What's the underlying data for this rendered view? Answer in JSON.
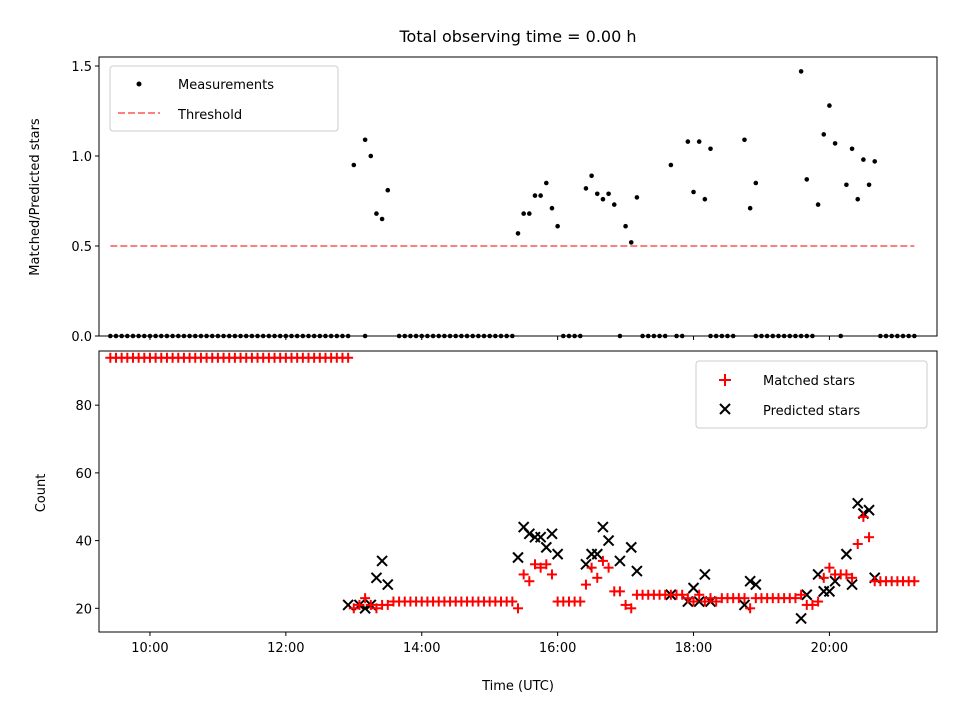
{
  "chart_data": [
    {
      "type": "scatter",
      "title": "Total observing time = 0.00 h",
      "xlabel": "",
      "ylabel": "Matched/Predicted stars",
      "xlim": [
        "09:15",
        "21:35"
      ],
      "ylim": [
        0,
        1.55
      ],
      "yticks": [
        "0.0",
        "0.5",
        "1.0",
        "1.5"
      ],
      "legend_position": "top-left",
      "series": [
        {
          "name": "Measurements",
          "color": "#000000",
          "marker": "dot",
          "zero_times": [
            "09:25",
            "09:30",
            "09:35",
            "09:40",
            "09:45",
            "09:50",
            "09:55",
            "10:00",
            "10:05",
            "10:10",
            "10:15",
            "10:20",
            "10:25",
            "10:30",
            "10:35",
            "10:40",
            "10:45",
            "10:50",
            "10:55",
            "11:00",
            "11:05",
            "11:10",
            "11:15",
            "11:20",
            "11:25",
            "11:30",
            "11:35",
            "11:40",
            "11:45",
            "11:50",
            "11:55",
            "12:00",
            "12:05",
            "12:10",
            "12:15",
            "12:20",
            "12:25",
            "12:30",
            "12:35",
            "12:40",
            "12:45",
            "12:50",
            "12:55",
            "13:10",
            "13:40",
            "13:45",
            "13:50",
            "13:55",
            "14:00",
            "14:05",
            "14:10",
            "14:15",
            "14:20",
            "14:25",
            "14:30",
            "14:35",
            "14:40",
            "14:45",
            "14:50",
            "14:55",
            "15:00",
            "15:05",
            "15:10",
            "15:15",
            "15:20",
            "16:05",
            "16:10",
            "16:15",
            "16:20",
            "16:55",
            "17:15",
            "17:20",
            "17:25",
            "17:30",
            "17:35",
            "17:45",
            "17:50",
            "18:15",
            "18:20",
            "18:25",
            "18:30",
            "18:35",
            "18:55",
            "19:00",
            "19:05",
            "19:10",
            "19:15",
            "19:20",
            "19:25",
            "19:30",
            "19:35",
            "19:40",
            "19:45",
            "20:10",
            "20:45",
            "20:50",
            "20:55",
            "21:00",
            "21:05",
            "21:10",
            "21:15"
          ],
          "points": [
            {
              "x": "13:00",
              "y": 0.95
            },
            {
              "x": "13:10",
              "y": 1.09
            },
            {
              "x": "13:15",
              "y": 1.0
            },
            {
              "x": "13:20",
              "y": 0.68
            },
            {
              "x": "13:25",
              "y": 0.65
            },
            {
              "x": "13:30",
              "y": 0.81
            },
            {
              "x": "15:25",
              "y": 0.57
            },
            {
              "x": "15:30",
              "y": 0.68
            },
            {
              "x": "15:35",
              "y": 0.68
            },
            {
              "x": "15:40",
              "y": 0.78
            },
            {
              "x": "15:45",
              "y": 0.78
            },
            {
              "x": "15:50",
              "y": 0.85
            },
            {
              "x": "15:55",
              "y": 0.71
            },
            {
              "x": "16:00",
              "y": 0.61
            },
            {
              "x": "16:25",
              "y": 0.82
            },
            {
              "x": "16:30",
              "y": 0.89
            },
            {
              "x": "16:35",
              "y": 0.79
            },
            {
              "x": "16:40",
              "y": 0.76
            },
            {
              "x": "16:45",
              "y": 0.79
            },
            {
              "x": "16:50",
              "y": 0.73
            },
            {
              "x": "17:00",
              "y": 0.61
            },
            {
              "x": "17:05",
              "y": 0.52
            },
            {
              "x": "17:10",
              "y": 0.77
            },
            {
              "x": "17:40",
              "y": 0.95
            },
            {
              "x": "17:55",
              "y": 1.08
            },
            {
              "x": "18:00",
              "y": 0.8
            },
            {
              "x": "18:05",
              "y": 1.08
            },
            {
              "x": "18:10",
              "y": 0.76
            },
            {
              "x": "18:15",
              "y": 1.04
            },
            {
              "x": "18:45",
              "y": 1.09
            },
            {
              "x": "18:50",
              "y": 0.71
            },
            {
              "x": "18:55",
              "y": 0.85
            },
            {
              "x": "19:35",
              "y": 1.47
            },
            {
              "x": "19:40",
              "y": 0.87
            },
            {
              "x": "19:50",
              "y": 0.73
            },
            {
              "x": "19:55",
              "y": 1.12
            },
            {
              "x": "20:00",
              "y": 1.28
            },
            {
              "x": "20:05",
              "y": 1.07
            },
            {
              "x": "20:15",
              "y": 0.84
            },
            {
              "x": "20:20",
              "y": 1.04
            },
            {
              "x": "20:25",
              "y": 0.76
            },
            {
              "x": "20:30",
              "y": 0.98
            },
            {
              "x": "20:35",
              "y": 0.84
            },
            {
              "x": "20:40",
              "y": 0.97
            }
          ]
        },
        {
          "name": "Threshold",
          "color": "#ff7f7f",
          "style": "dashed",
          "from": "09:25",
          "to": "21:15",
          "value": 0.5
        }
      ]
    },
    {
      "type": "scatter",
      "title": "",
      "xlabel": "Time (UTC)",
      "ylabel": "Count",
      "xlim": [
        "09:15",
        "21:35"
      ],
      "ylim": [
        13,
        96
      ],
      "yticks": [
        "20",
        "40",
        "60",
        "80"
      ],
      "xticks": [
        "10:00",
        "12:00",
        "14:00",
        "16:00",
        "18:00",
        "20:00"
      ],
      "legend_position": "top-right",
      "series": [
        {
          "name": "Matched stars",
          "color": "#ff0000",
          "marker": "plus",
          "constant_runs": [
            {
              "from": "09:25",
              "to": "12:55",
              "value": 94
            },
            {
              "from": "13:35",
              "to": "15:20",
              "value": 22
            },
            {
              "from": "16:00",
              "to": "16:20",
              "value": 22
            },
            {
              "from": "17:10",
              "to": "17:50",
              "value": 24
            },
            {
              "from": "18:25",
              "to": "18:45",
              "value": 23
            },
            {
              "from": "18:55",
              "to": "19:30",
              "value": 23
            },
            {
              "from": "20:40",
              "to": "21:15",
              "value": 28
            }
          ],
          "points": [
            {
              "x": "13:00",
              "y": 20
            },
            {
              "x": "13:05",
              "y": 21
            },
            {
              "x": "13:10",
              "y": 23
            },
            {
              "x": "13:15",
              "y": 21
            },
            {
              "x": "13:20",
              "y": 20
            },
            {
              "x": "13:25",
              "y": 21
            },
            {
              "x": "13:30",
              "y": 21
            },
            {
              "x": "15:25",
              "y": 20
            },
            {
              "x": "15:30",
              "y": 30
            },
            {
              "x": "15:35",
              "y": 28
            },
            {
              "x": "15:40",
              "y": 33
            },
            {
              "x": "15:45",
              "y": 32
            },
            {
              "x": "15:50",
              "y": 33
            },
            {
              "x": "15:55",
              "y": 30
            },
            {
              "x": "16:25",
              "y": 27
            },
            {
              "x": "16:30",
              "y": 32
            },
            {
              "x": "16:35",
              "y": 29
            },
            {
              "x": "16:40",
              "y": 34
            },
            {
              "x": "16:45",
              "y": 32
            },
            {
              "x": "16:50",
              "y": 25
            },
            {
              "x": "16:55",
              "y": 25
            },
            {
              "x": "17:00",
              "y": 21
            },
            {
              "x": "17:05",
              "y": 20
            },
            {
              "x": "17:55",
              "y": 23
            },
            {
              "x": "18:00",
              "y": 22
            },
            {
              "x": "18:05",
              "y": 24
            },
            {
              "x": "18:10",
              "y": 22
            },
            {
              "x": "18:15",
              "y": 23
            },
            {
              "x": "18:20",
              "y": 22
            },
            {
              "x": "18:50",
              "y": 20
            },
            {
              "x": "19:35",
              "y": 24
            },
            {
              "x": "19:40",
              "y": 21
            },
            {
              "x": "19:45",
              "y": 21
            },
            {
              "x": "19:50",
              "y": 22
            },
            {
              "x": "19:55",
              "y": 29
            },
            {
              "x": "20:00",
              "y": 32
            },
            {
              "x": "20:05",
              "y": 30
            },
            {
              "x": "20:10",
              "y": 30
            },
            {
              "x": "20:15",
              "y": 30
            },
            {
              "x": "20:20",
              "y": 29
            },
            {
              "x": "20:25",
              "y": 39
            },
            {
              "x": "20:30",
              "y": 47
            },
            {
              "x": "20:35",
              "y": 41
            }
          ]
        },
        {
          "name": "Predicted stars",
          "color": "#000000",
          "marker": "x",
          "points": [
            {
              "x": "12:55",
              "y": 21
            },
            {
              "x": "13:05",
              "y": 21
            },
            {
              "x": "13:10",
              "y": 20
            },
            {
              "x": "13:15",
              "y": 21
            },
            {
              "x": "13:20",
              "y": 29
            },
            {
              "x": "13:25",
              "y": 34
            },
            {
              "x": "13:30",
              "y": 27
            },
            {
              "x": "15:25",
              "y": 35
            },
            {
              "x": "15:30",
              "y": 44
            },
            {
              "x": "15:35",
              "y": 42
            },
            {
              "x": "15:40",
              "y": 41
            },
            {
              "x": "15:45",
              "y": 41
            },
            {
              "x": "15:50",
              "y": 38
            },
            {
              "x": "15:55",
              "y": 42
            },
            {
              "x": "16:00",
              "y": 36
            },
            {
              "x": "16:25",
              "y": 33
            },
            {
              "x": "16:30",
              "y": 36
            },
            {
              "x": "16:35",
              "y": 36
            },
            {
              "x": "16:40",
              "y": 44
            },
            {
              "x": "16:45",
              "y": 40
            },
            {
              "x": "16:55",
              "y": 34
            },
            {
              "x": "17:05",
              "y": 38
            },
            {
              "x": "17:10",
              "y": 31
            },
            {
              "x": "17:40",
              "y": 24
            },
            {
              "x": "17:55",
              "y": 22
            },
            {
              "x": "18:00",
              "y": 26
            },
            {
              "x": "18:05",
              "y": 22
            },
            {
              "x": "18:10",
              "y": 30
            },
            {
              "x": "18:15",
              "y": 22
            },
            {
              "x": "18:45",
              "y": 21
            },
            {
              "x": "18:50",
              "y": 28
            },
            {
              "x": "18:55",
              "y": 27
            },
            {
              "x": "19:35",
              "y": 17
            },
            {
              "x": "19:40",
              "y": 24
            },
            {
              "x": "19:50",
              "y": 30
            },
            {
              "x": "19:55",
              "y": 25
            },
            {
              "x": "20:00",
              "y": 25
            },
            {
              "x": "20:05",
              "y": 28
            },
            {
              "x": "20:15",
              "y": 36
            },
            {
              "x": "20:20",
              "y": 27
            },
            {
              "x": "20:25",
              "y": 51
            },
            {
              "x": "20:30",
              "y": 48
            },
            {
              "x": "20:35",
              "y": 49
            },
            {
              "x": "20:40",
              "y": 29
            }
          ]
        }
      ]
    }
  ]
}
